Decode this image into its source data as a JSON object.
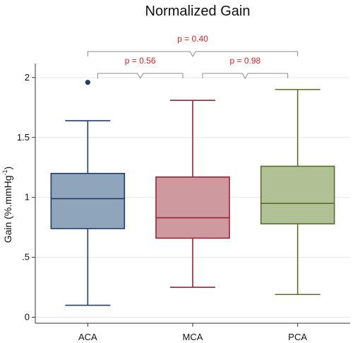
{
  "chart_data": {
    "type": "box",
    "title": "Normalized Gain",
    "xlabel": "",
    "ylabel": "Gain (%.mmHg",
    "ylabel_superscript": "-1",
    "ylabel_suffix": ")",
    "ylim": [
      -0.05,
      2.07
    ],
    "yticks": [
      {
        "value": 0,
        "label": "0"
      },
      {
        "value": 0.5,
        "label": ".5"
      },
      {
        "value": 1,
        "label": "1"
      },
      {
        "value": 1.5,
        "label": "1.5"
      },
      {
        "value": 2,
        "label": "2"
      }
    ],
    "grid": true,
    "categories": [
      "ACA",
      "MCA",
      "PCA"
    ],
    "boxes": [
      {
        "name": "ACA",
        "min": 0.1,
        "q1": 0.74,
        "median": 0.99,
        "q3": 1.2,
        "max": 1.64,
        "outliers": [
          1.96
        ],
        "stroke": "#1f3d6b",
        "fill": "#8fa5bc"
      },
      {
        "name": "MCA",
        "min": 0.25,
        "q1": 0.66,
        "median": 0.83,
        "q3": 1.17,
        "max": 1.81,
        "outliers": [],
        "stroke": "#9b2335",
        "fill": "#cf99a0"
      },
      {
        "name": "PCA",
        "min": 0.19,
        "q1": 0.78,
        "median": 0.95,
        "q3": 1.26,
        "max": 1.9,
        "outliers": [],
        "stroke": "#596e2a",
        "fill": "#b0c196"
      }
    ],
    "comparisons": [
      {
        "from": "ACA",
        "to": "PCA",
        "label": "p = 0.40",
        "level": 2
      },
      {
        "from": "ACA",
        "to": "MCA",
        "label": "p = 0.56",
        "level": 1
      },
      {
        "from": "MCA",
        "to": "PCA",
        "label": "p = 0.98",
        "level": 1
      }
    ],
    "colors": {
      "pvalue": "#e02020",
      "grid": "#e6e6e6",
      "axis": "#333333",
      "bracket": "#8c8c8c"
    }
  }
}
